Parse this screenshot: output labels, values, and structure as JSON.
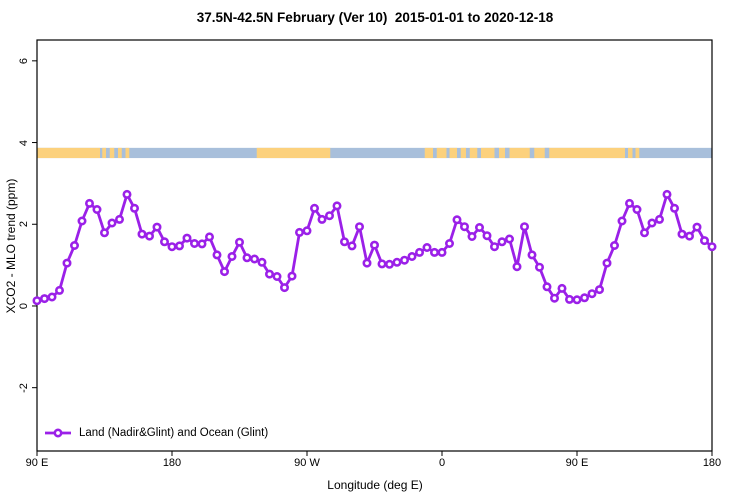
{
  "title": "37.5N-42.5N February (Ver 10)  2015-01-01 to 2020-12-18",
  "legend": {
    "label": "Land (Nadir&Glint) and Ocean (Glint)",
    "position": "bottom-left"
  },
  "colors": {
    "series": "#9B20E8",
    "land": "#FCD17D",
    "ocean": "#A8BFDB",
    "frame": "#000000",
    "text": "#000000",
    "background": "#FFFFFF"
  },
  "axes": {
    "x": {
      "label": "Longitude (deg E)",
      "range": [
        90,
        540
      ],
      "ticks": [
        {
          "pos": 90,
          "label": "90 E"
        },
        {
          "pos": 180,
          "label": "180"
        },
        {
          "pos": 270,
          "label": "90 W"
        },
        {
          "pos": 360,
          "label": "0"
        },
        {
          "pos": 450,
          "label": "90 E"
        },
        {
          "pos": 540,
          "label": "180"
        }
      ]
    },
    "y": {
      "label": "XCO2 - MLO trend (ppm)",
      "range": [
        -3.55,
        6.51
      ],
      "ticks": [
        {
          "pos": -2,
          "label": "-2"
        },
        {
          "pos": 0,
          "label": "0"
        },
        {
          "pos": 2,
          "label": "2"
        },
        {
          "pos": 4,
          "label": "4"
        },
        {
          "pos": 6,
          "label": "6"
        }
      ]
    }
  },
  "chart_data": {
    "type": "line",
    "title": "37.5N-42.5N February (Ver 10)  2015-01-01 to 2020-12-18",
    "xlabel": "Longitude (deg E)",
    "ylabel": "XCO2 - MLO trend (ppm)",
    "xlim": [
      90,
      540
    ],
    "ylim": [
      -3.55,
      6.51
    ],
    "grid": false,
    "legend_position": "bottom-left",
    "x": [
      90,
      95,
      100,
      105,
      110,
      115,
      120,
      125,
      130,
      135,
      140,
      145,
      150,
      155,
      160,
      165,
      170,
      175,
      180,
      185,
      190,
      195,
      200,
      205,
      210,
      215,
      220,
      225,
      230,
      235,
      240,
      245,
      250,
      255,
      260,
      265,
      270,
      275,
      280,
      285,
      290,
      295,
      300,
      305,
      310,
      315,
      320,
      325,
      330,
      335,
      340,
      345,
      350,
      355,
      360,
      365,
      370,
      375,
      380,
      385,
      390,
      395,
      400,
      405,
      410,
      415,
      420,
      425,
      430,
      435,
      440,
      445,
      450,
      455,
      460,
      465,
      470,
      475,
      480,
      485,
      490,
      495,
      500,
      505,
      510,
      515,
      520,
      525,
      530,
      535,
      540
    ],
    "series": [
      {
        "name": "Land (Nadir&Glint) and Ocean (Glint)",
        "color": "#9B20E8",
        "marker": "open-circle",
        "values": [
          0.13,
          0.18,
          0.22,
          0.38,
          1.05,
          1.48,
          2.08,
          2.51,
          2.36,
          1.79,
          2.03,
          2.12,
          2.73,
          2.39,
          1.76,
          1.71,
          1.93,
          1.57,
          1.45,
          1.47,
          1.66,
          1.53,
          1.52,
          1.69,
          1.25,
          0.84,
          1.21,
          1.56,
          1.18,
          1.15,
          1.07,
          0.78,
          0.72,
          0.45,
          0.73,
          1.8,
          1.84,
          2.39,
          2.12,
          2.21,
          2.45,
          1.57,
          1.47,
          1.94,
          1.05,
          1.49,
          1.03,
          1.02,
          1.07,
          1.12,
          1.21,
          1.31,
          1.43,
          1.31,
          1.31,
          1.53,
          2.11,
          1.94,
          1.7,
          1.92,
          1.72,
          1.45,
          1.57,
          1.64,
          0.96,
          1.94,
          1.25,
          0.95,
          0.47,
          0.19,
          0.43,
          0.16,
          0.15,
          0.2,
          0.3,
          0.4,
          1.05,
          1.48,
          2.08,
          2.51,
          2.36,
          1.79,
          2.03,
          2.12,
          2.73,
          2.39,
          1.76,
          1.71,
          1.93,
          1.6,
          1.45
        ]
      }
    ],
    "map_strip": {
      "description": "land-ocean strip across top of plot",
      "value_range": [
        3.62,
        3.87
      ],
      "land_color": "#FCD17D",
      "ocean_color": "#A8BFDB",
      "land_segments_deg": [
        [
          90,
          132
        ],
        [
          133.5,
          136
        ],
        [
          138.5,
          141.5
        ],
        [
          144,
          146.5
        ],
        [
          149,
          151.5
        ],
        [
          236.5,
          285.5
        ],
        [
          348.5,
          354
        ],
        [
          356.5,
          363
        ],
        [
          365,
          370
        ],
        [
          372.5,
          376
        ],
        [
          378.5,
          383.5
        ],
        [
          386,
          482
        ],
        [
          484,
          487
        ],
        [
          489,
          491.5
        ]
      ],
      "ocean_patches_deg": [
        [
          395,
          398
        ],
        [
          402,
          405
        ],
        [
          418.5,
          421.5
        ],
        [
          428.5,
          431.5
        ]
      ]
    }
  }
}
